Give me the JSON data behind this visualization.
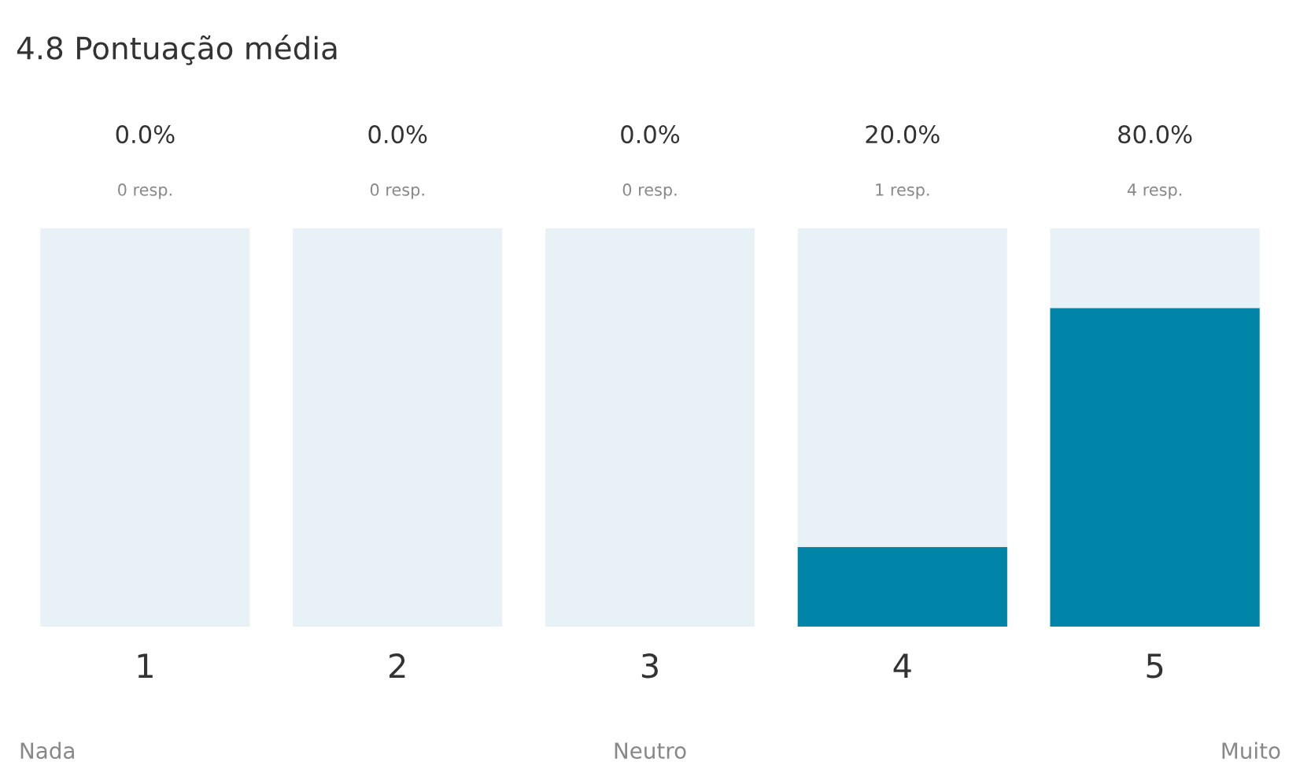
{
  "chart_data": {
    "type": "bar",
    "title": "4.8 Pontuação média",
    "categories": [
      "1",
      "2",
      "3",
      "4",
      "5"
    ],
    "stacked": true,
    "ylim": [
      0,
      100
    ],
    "tick_labels": "x",
    "grid": false,
    "legend": false,
    "series": [
      {
        "color": "#0085a8",
        "values": [
          0,
          0,
          0,
          20,
          80
        ],
        "value_labels": [
          "0.0%",
          "0.0%",
          "0.0%",
          "20.0%",
          "80.0%"
        ]
      },
      {
        "color": "#e8f2f6",
        "values": [
          100,
          100,
          100,
          80,
          20
        ]
      }
    ],
    "annotations": [
      "Nada",
      "Neutro",
      "Muito",
      {
        "text": "0 resp.",
        "x": "1",
        "y": 100
      },
      {
        "text": "0 resp.",
        "x": "2",
        "y": 100
      },
      {
        "text": "0 resp.",
        "x": "3",
        "y": 100
      },
      {
        "text": "1 resp.",
        "x": "4",
        "y": 100
      },
      {
        "text": "4 resp.",
        "x": "5",
        "y": 100
      }
    ]
  }
}
